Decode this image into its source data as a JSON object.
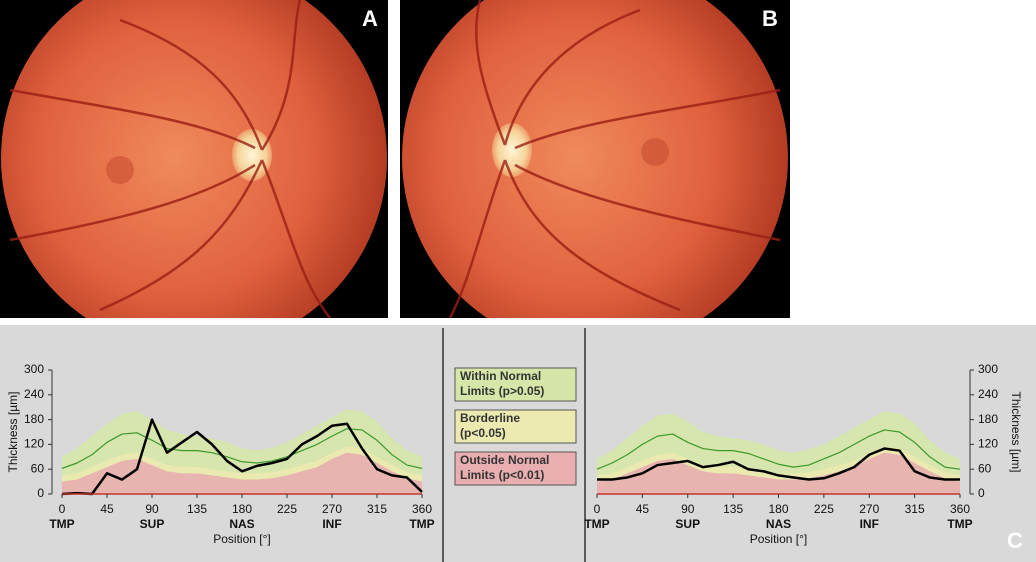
{
  "panels": [
    "A",
    "B",
    "C"
  ],
  "legend": [
    {
      "label": [
        "Within Normal",
        "Limits (p>0.05)"
      ],
      "color": "#d6e6a8"
    },
    {
      "label": [
        "Borderline",
        "(p<0.05)"
      ],
      "color": "#eceab0"
    },
    {
      "label": [
        "Outside Normal",
        "Limits (p<0.01)"
      ],
      "color": "#e8aeb0"
    }
  ],
  "chart_data": [
    {
      "type": "line",
      "xlabel": "Position [°]",
      "ylabel": "Thickness [µm]",
      "yaxis_side": "left",
      "x": [
        0,
        15,
        30,
        45,
        60,
        75,
        90,
        105,
        120,
        135,
        150,
        165,
        180,
        195,
        210,
        225,
        240,
        255,
        270,
        285,
        300,
        315,
        330,
        345,
        360
      ],
      "xlim": [
        0,
        360
      ],
      "xticks": [
        0,
        45,
        90,
        135,
        180,
        225,
        270,
        315,
        360
      ],
      "xtick_sublabels": [
        {
          "value": 0,
          "label": "TMP"
        },
        {
          "value": 90,
          "label": "SUP"
        },
        {
          "value": 180,
          "label": "NAS"
        },
        {
          "value": 270,
          "label": "INF"
        },
        {
          "value": 360,
          "label": "TMP"
        }
      ],
      "ylim": [
        0,
        300
      ],
      "yticks": [
        0,
        60,
        120,
        180,
        240,
        300
      ],
      "series": [
        {
          "kind": "band",
          "color": "#d6e6a8",
          "values": [
            90,
            110,
            140,
            170,
            195,
            200,
            180,
            155,
            145,
            140,
            135,
            125,
            110,
            105,
            112,
            125,
            145,
            165,
            185,
            205,
            200,
            175,
            135,
            105,
            90
          ]
        },
        {
          "kind": "band",
          "color": "#eceab0",
          "values": [
            45,
            50,
            65,
            80,
            95,
            100,
            85,
            70,
            65,
            65,
            60,
            55,
            50,
            50,
            53,
            60,
            70,
            80,
            100,
            115,
            110,
            90,
            70,
            53,
            45
          ]
        },
        {
          "kind": "band",
          "color": "#e8aeb0",
          "values": [
            30,
            35,
            50,
            65,
            80,
            85,
            70,
            55,
            50,
            50,
            45,
            40,
            35,
            35,
            38,
            45,
            55,
            65,
            85,
            100,
            95,
            75,
            55,
            38,
            30
          ]
        },
        {
          "kind": "line",
          "color": "#3a9a2a",
          "width": 1.2,
          "values": [
            62,
            75,
            95,
            125,
            145,
            148,
            130,
            110,
            105,
            105,
            100,
            90,
            78,
            75,
            80,
            90,
            105,
            120,
            140,
            158,
            155,
            130,
            95,
            70,
            62
          ]
        },
        {
          "kind": "line",
          "color": "#000000",
          "width": 2.5,
          "values": [
            0,
            2,
            0,
            50,
            35,
            60,
            180,
            100,
            125,
            150,
            120,
            80,
            55,
            68,
            75,
            85,
            120,
            140,
            165,
            170,
            110,
            60,
            45,
            40,
            5
          ]
        }
      ]
    },
    {
      "type": "line",
      "xlabel": "Position [°]",
      "ylabel": "Thickness [µm]",
      "yaxis_side": "right",
      "x": [
        0,
        15,
        30,
        45,
        60,
        75,
        90,
        105,
        120,
        135,
        150,
        165,
        180,
        195,
        210,
        225,
        240,
        255,
        270,
        285,
        300,
        315,
        330,
        345,
        360
      ],
      "xlim": [
        0,
        360
      ],
      "xticks": [
        0,
        45,
        90,
        135,
        180,
        225,
        270,
        315,
        360
      ],
      "xtick_sublabels": [
        {
          "value": 0,
          "label": "TMP"
        },
        {
          "value": 90,
          "label": "SUP"
        },
        {
          "value": 180,
          "label": "NAS"
        },
        {
          "value": 270,
          "label": "INF"
        },
        {
          "value": 360,
          "label": "TMP"
        }
      ],
      "ylim": [
        0,
        300
      ],
      "yticks": [
        0,
        60,
        120,
        180,
        240,
        300
      ],
      "series": [
        {
          "kind": "band",
          "color": "#d6e6a8",
          "values": [
            85,
            105,
            135,
            165,
            190,
            195,
            175,
            150,
            140,
            135,
            130,
            120,
            105,
            100,
            108,
            120,
            140,
            160,
            180,
            200,
            195,
            170,
            130,
            100,
            85
          ]
        },
        {
          "kind": "band",
          "color": "#eceab0",
          "values": [
            45,
            50,
            65,
            80,
            95,
            100,
            85,
            70,
            65,
            65,
            60,
            55,
            50,
            50,
            53,
            60,
            70,
            80,
            100,
            115,
            110,
            90,
            70,
            53,
            45
          ]
        },
        {
          "kind": "band",
          "color": "#e8aeb0",
          "values": [
            30,
            35,
            50,
            65,
            80,
            85,
            70,
            55,
            50,
            50,
            45,
            40,
            35,
            35,
            38,
            45,
            55,
            65,
            85,
            100,
            95,
            75,
            55,
            38,
            30
          ]
        },
        {
          "kind": "line",
          "color": "#3a9a2a",
          "width": 1.2,
          "values": [
            60,
            75,
            95,
            120,
            140,
            145,
            125,
            110,
            105,
            105,
            98,
            85,
            72,
            65,
            70,
            85,
            100,
            120,
            140,
            155,
            150,
            125,
            90,
            65,
            60
          ]
        },
        {
          "kind": "line",
          "color": "#000000",
          "width": 2.5,
          "values": [
            35,
            35,
            40,
            50,
            70,
            75,
            80,
            65,
            70,
            78,
            60,
            55,
            45,
            40,
            35,
            38,
            50,
            65,
            95,
            110,
            105,
            55,
            40,
            35,
            35
          ]
        }
      ]
    }
  ]
}
